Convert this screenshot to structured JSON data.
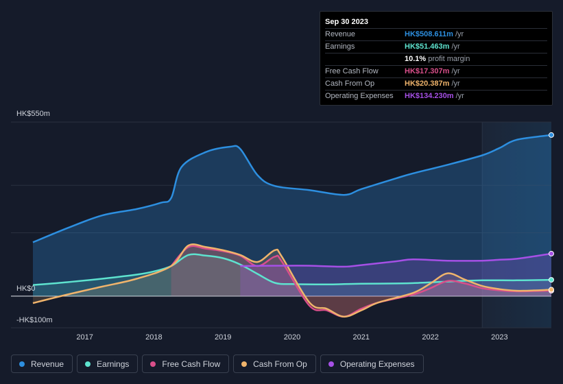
{
  "tooltip": {
    "date": "Sep 30 2023",
    "rows": [
      {
        "label": "Revenue",
        "value": "HK$508.611m",
        "unit": "/yr",
        "color": "#2d8fe0"
      },
      {
        "label": "Earnings",
        "value": "HK$51.463m",
        "unit": "/yr",
        "color": "#5ee3cf"
      },
      {
        "label": "",
        "value": "10.1%",
        "unit": "profit margin",
        "color": "#ffffff"
      },
      {
        "label": "Free Cash Flow",
        "value": "HK$17.307m",
        "unit": "/yr",
        "color": "#d94f8a"
      },
      {
        "label": "Cash From Op",
        "value": "HK$20.387m",
        "unit": "/yr",
        "color": "#f0b46c"
      },
      {
        "label": "Operating Expenses",
        "value": "HK$134.230m",
        "unit": "/yr",
        "color": "#a650e6"
      }
    ]
  },
  "legend": [
    {
      "label": "Revenue",
      "color": "#2d8fe0"
    },
    {
      "label": "Earnings",
      "color": "#5ee3cf"
    },
    {
      "label": "Free Cash Flow",
      "color": "#d94f8a"
    },
    {
      "label": "Cash From Op",
      "color": "#f0b46c"
    },
    {
      "label": "Operating Expenses",
      "color": "#a650e6"
    }
  ],
  "chart_data": {
    "type": "area",
    "title": "",
    "y_top_label": "HK$550m",
    "y_zero_label": "HK$0",
    "y_bottom_label": "-HK$100m",
    "ylim": [
      -100,
      550
    ],
    "xlim": [
      2016.25,
      2023.75
    ],
    "x_ticks": [
      2017,
      2018,
      2019,
      2020,
      2021,
      2022,
      2023
    ],
    "x_tick_labels": [
      "2017",
      "2018",
      "2019",
      "2020",
      "2021",
      "2022",
      "2023"
    ],
    "forecast_start": 2022.75,
    "series": [
      {
        "name": "Revenue",
        "color": "#2d8fe0",
        "points": [
          [
            2016.25,
            170
          ],
          [
            2016.75,
            215
          ],
          [
            2017.25,
            255
          ],
          [
            2017.75,
            275
          ],
          [
            2018.1,
            295
          ],
          [
            2018.25,
            310
          ],
          [
            2018.4,
            408
          ],
          [
            2018.75,
            455
          ],
          [
            2019.1,
            472
          ],
          [
            2019.25,
            465
          ],
          [
            2019.5,
            382
          ],
          [
            2019.75,
            348
          ],
          [
            2020.25,
            335
          ],
          [
            2020.75,
            320
          ],
          [
            2021.0,
            338
          ],
          [
            2021.5,
            372
          ],
          [
            2021.75,
            388
          ],
          [
            2022.25,
            415
          ],
          [
            2022.75,
            445
          ],
          [
            2023.0,
            468
          ],
          [
            2023.25,
            494
          ],
          [
            2023.75,
            509
          ]
        ]
      },
      {
        "name": "Earnings",
        "color": "#5ee3cf",
        "points": [
          [
            2016.25,
            35
          ],
          [
            2016.75,
            44
          ],
          [
            2017.25,
            55
          ],
          [
            2017.75,
            68
          ],
          [
            2018.0,
            78
          ],
          [
            2018.25,
            95
          ],
          [
            2018.5,
            130
          ],
          [
            2018.75,
            128
          ],
          [
            2019.0,
            120
          ],
          [
            2019.25,
            100
          ],
          [
            2019.5,
            70
          ],
          [
            2019.75,
            42
          ],
          [
            2020.0,
            38
          ],
          [
            2020.5,
            37
          ],
          [
            2020.75,
            38
          ],
          [
            2021.0,
            39
          ],
          [
            2021.5,
            40
          ],
          [
            2021.75,
            41
          ],
          [
            2022.25,
            46
          ],
          [
            2022.75,
            50
          ],
          [
            2023.25,
            50
          ],
          [
            2023.75,
            51.5
          ]
        ]
      },
      {
        "name": "Free Cash Flow",
        "color": "#d94f8a",
        "points": [
          [
            2018.25,
            95
          ],
          [
            2018.5,
            155
          ],
          [
            2018.75,
            150
          ],
          [
            2019.0,
            142
          ],
          [
            2019.25,
            128
          ],
          [
            2019.5,
            95
          ],
          [
            2019.75,
            125
          ],
          [
            2019.85,
            110
          ],
          [
            2020.25,
            -30
          ],
          [
            2020.5,
            -45
          ],
          [
            2020.75,
            -65
          ],
          [
            2021.0,
            -40
          ],
          [
            2021.25,
            -20
          ],
          [
            2021.75,
            5
          ],
          [
            2022.0,
            25
          ],
          [
            2022.25,
            48
          ],
          [
            2022.5,
            40
          ],
          [
            2022.75,
            25
          ],
          [
            2023.0,
            18
          ],
          [
            2023.25,
            15
          ],
          [
            2023.5,
            16
          ],
          [
            2023.75,
            17.3
          ]
        ]
      },
      {
        "name": "Cash From Op",
        "color": "#f0b46c",
        "points": [
          [
            2016.25,
            -22
          ],
          [
            2016.75,
            5
          ],
          [
            2017.25,
            30
          ],
          [
            2017.75,
            55
          ],
          [
            2018.25,
            95
          ],
          [
            2018.5,
            160
          ],
          [
            2018.75,
            155
          ],
          [
            2019.0,
            145
          ],
          [
            2019.25,
            130
          ],
          [
            2019.5,
            108
          ],
          [
            2019.75,
            145
          ],
          [
            2019.85,
            125
          ],
          [
            2020.25,
            -20
          ],
          [
            2020.5,
            -40
          ],
          [
            2020.75,
            -65
          ],
          [
            2021.0,
            -45
          ],
          [
            2021.25,
            -20
          ],
          [
            2021.75,
            10
          ],
          [
            2022.0,
            40
          ],
          [
            2022.25,
            72
          ],
          [
            2022.5,
            52
          ],
          [
            2022.75,
            32
          ],
          [
            2023.0,
            22
          ],
          [
            2023.25,
            17
          ],
          [
            2023.5,
            18
          ],
          [
            2023.75,
            20.4
          ]
        ]
      },
      {
        "name": "Operating Expenses",
        "color": "#a650e6",
        "points": [
          [
            2019.25,
            95
          ],
          [
            2019.75,
            96
          ],
          [
            2020.25,
            96
          ],
          [
            2020.75,
            93
          ],
          [
            2021.0,
            98
          ],
          [
            2021.5,
            110
          ],
          [
            2021.75,
            116
          ],
          [
            2022.25,
            112
          ],
          [
            2022.75,
            112
          ],
          [
            2023.0,
            115
          ],
          [
            2023.25,
            118
          ],
          [
            2023.75,
            134.2
          ]
        ]
      }
    ]
  }
}
